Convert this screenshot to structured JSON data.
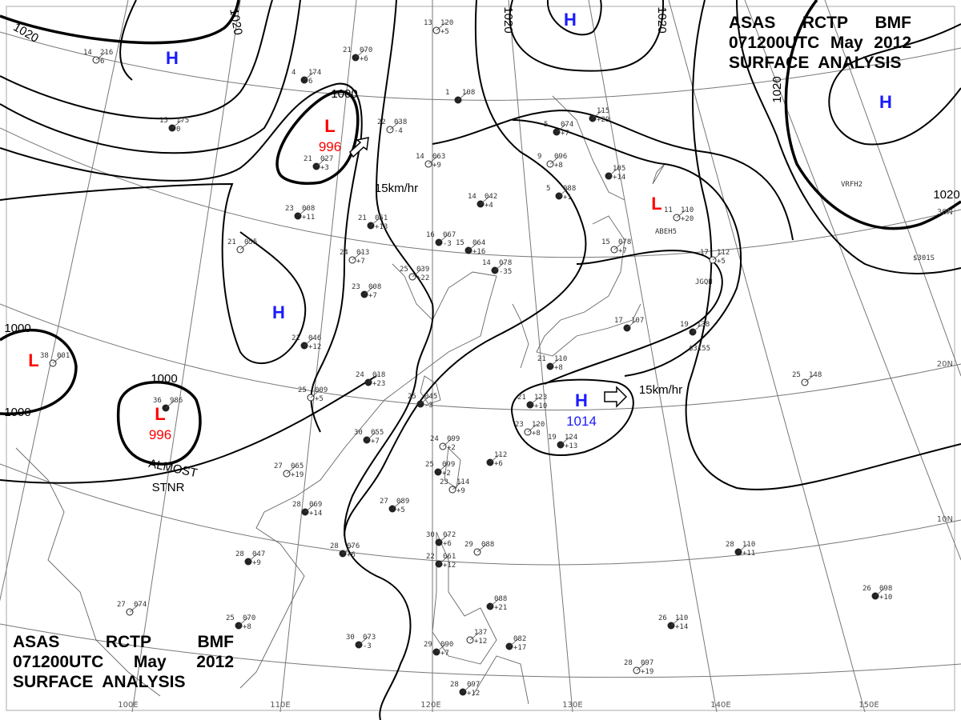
{
  "title": {
    "line1": [
      "ASAS",
      "RCTP",
      "BMF"
    ],
    "line2": [
      "071200UTC",
      "May",
      "2012"
    ],
    "line3": "SURFACE  ANALYSIS"
  },
  "colors": {
    "high": "#1a1aff",
    "low": "#ff0000",
    "isobar": "#000000",
    "grid": "#777777"
  },
  "longitude_labels": [
    "100E",
    "110E",
    "120E",
    "130E",
    "140E",
    "150E"
  ],
  "latitude_labels": [
    "30N",
    "20N",
    "10N"
  ],
  "isobar_labels": [
    "1020",
    "1020",
    "1020",
    "1020",
    "1020",
    "1000",
    "1000",
    "1000",
    "1000",
    "1020"
  ],
  "pressure_systems": [
    {
      "type": "H",
      "value": ""
    },
    {
      "type": "L",
      "value": "996"
    },
    {
      "type": "H",
      "value": ""
    },
    {
      "type": "L",
      "value": ""
    },
    {
      "type": "L",
      "value": "996",
      "note_line1": "ALMOST",
      "note_line2": "STNR"
    },
    {
      "type": "H",
      "value": ""
    },
    {
      "type": "H",
      "value": ""
    },
    {
      "type": "L",
      "value": ""
    },
    {
      "type": "H",
      "value": "1014"
    }
  ],
  "movement_labels": [
    "15km/hr",
    "15km/hr"
  ],
  "ship_ids": [
    "ABEH5",
    "JGQH",
    "$3155",
    "$301S",
    "VRFH2"
  ],
  "stations": [
    {
      "t": "14",
      "p": "216",
      "d": "6"
    },
    {
      "t": "4",
      "p": "174",
      "d": "6"
    },
    {
      "t": "15",
      "p": "175",
      "d": "0"
    },
    {
      "t": "22",
      "p": "038",
      "d": "-4"
    },
    {
      "t": "1",
      "p": "108",
      "d": ""
    },
    {
      "t": "21",
      "p": "070",
      "d": "+6"
    },
    {
      "t": "13",
      "p": "120",
      "d": "+5"
    },
    {
      "t": "23",
      "p": "008",
      "d": "+11"
    },
    {
      "t": "21",
      "p": "051",
      "d": "+13"
    },
    {
      "t": "21",
      "p": "055",
      "d": ""
    },
    {
      "t": "16",
      "p": "067",
      "d": "-3"
    },
    {
      "t": "15",
      "p": "064",
      "d": "+16"
    },
    {
      "t": "24",
      "p": "013",
      "d": "+7"
    },
    {
      "t": "14",
      "p": "042",
      "d": "+4"
    },
    {
      "t": "14",
      "p": "078",
      "d": "-35"
    },
    {
      "t": "25",
      "p": "039",
      "d": "+22"
    },
    {
      "t": "23",
      "p": "008",
      "d": "+7"
    },
    {
      "t": "21",
      "p": "046",
      "d": "+12"
    },
    {
      "t": "38",
      "p": "001",
      "d": ""
    },
    {
      "t": "36",
      "p": "986",
      "d": ""
    },
    {
      "t": "24",
      "p": "018",
      "d": "+23"
    },
    {
      "t": "25",
      "p": "009",
      "d": "+5"
    },
    {
      "t": "25",
      "p": "045",
      "d": "-3"
    },
    {
      "t": "30",
      "p": "055",
      "d": "+7"
    },
    {
      "t": "27",
      "p": "065",
      "d": "+19"
    },
    {
      "t": "28",
      "p": "069",
      "d": "+14"
    },
    {
      "t": "27",
      "p": "089",
      "d": "+5"
    },
    {
      "t": "24",
      "p": "099",
      "d": "+2"
    },
    {
      "t": "",
      "p": "112",
      "d": "+6"
    },
    {
      "t": "25",
      "p": "099",
      "d": "+2"
    },
    {
      "t": "23",
      "p": "114",
      "d": "+9"
    },
    {
      "t": "28",
      "p": "076",
      "d": "+6"
    },
    {
      "t": "28",
      "p": "047",
      "d": "+9"
    },
    {
      "t": "27",
      "p": "074",
      "d": ""
    },
    {
      "t": "25",
      "p": "070",
      "d": "+8"
    },
    {
      "t": "30",
      "p": "072",
      "d": "+6"
    },
    {
      "t": "29",
      "p": "088",
      "d": ""
    },
    {
      "t": "22",
      "p": "061",
      "d": "+12"
    },
    {
      "t": "",
      "p": "088",
      "d": "+21"
    },
    {
      "t": "25",
      "p": "148",
      "d": ""
    },
    {
      "t": "28",
      "p": "110",
      "d": "+11"
    },
    {
      "t": "26",
      "p": "110",
      "d": "+14"
    },
    {
      "t": "28",
      "p": "097",
      "d": "+19"
    },
    {
      "t": "26",
      "p": "098",
      "d": "+10"
    },
    {
      "t": "19",
      "p": "138",
      "d": ""
    },
    {
      "t": "17",
      "p": "112",
      "d": "+5"
    },
    {
      "t": "17",
      "p": "107",
      "d": ""
    },
    {
      "t": "21",
      "p": "123",
      "d": "+10"
    },
    {
      "t": "23",
      "p": "120",
      "d": "+8"
    },
    {
      "t": "19",
      "p": "124",
      "d": "+13"
    },
    {
      "t": "21",
      "p": "110",
      "d": "+8"
    },
    {
      "t": "15",
      "p": "078",
      "d": "+7"
    },
    {
      "t": "",
      "p": "105",
      "d": "+14"
    },
    {
      "t": "5",
      "p": "088",
      "d": "+1"
    },
    {
      "t": "9",
      "p": "096",
      "d": "+8"
    },
    {
      "t": "5",
      "p": "074",
      "d": "+7"
    },
    {
      "t": "",
      "p": "115",
      "d": "+29"
    },
    {
      "t": "11",
      "p": "110",
      "d": "+20"
    },
    {
      "t": "29",
      "p": "090",
      "d": "+7"
    },
    {
      "t": "30",
      "p": "073",
      "d": "-3"
    },
    {
      "t": "",
      "p": "137",
      "d": "+12"
    },
    {
      "t": "",
      "p": "082",
      "d": "+17"
    },
    {
      "t": "28",
      "p": "097",
      "d": "+12"
    },
    {
      "t": "14",
      "p": "063",
      "d": "+9"
    },
    {
      "t": "21",
      "p": "027",
      "d": "+3"
    }
  ]
}
